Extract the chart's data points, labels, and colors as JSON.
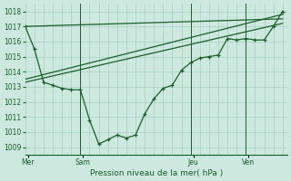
{
  "bg_color": "#cce8df",
  "grid_color": "#9ec8ba",
  "line_color": "#1a5e2a",
  "title": "Pression niveau de la mer( hPa )",
  "ylim": [
    1008.5,
    1018.5
  ],
  "yticks": [
    1009,
    1010,
    1011,
    1012,
    1013,
    1014,
    1015,
    1016,
    1017,
    1018
  ],
  "xlim": [
    0,
    28.5
  ],
  "day_labels": [
    "Mer",
    "Sam",
    "Jeu",
    "Ven"
  ],
  "day_positions": [
    0.3,
    6.3,
    18.3,
    24.3
  ],
  "day_vlines": [
    6,
    18,
    24
  ],
  "series1_x": [
    0,
    1,
    2,
    3,
    4,
    5,
    6,
    7,
    8,
    9,
    10,
    11,
    12,
    13,
    14,
    15,
    16,
    17,
    18,
    19,
    20,
    21,
    22,
    23,
    24,
    25,
    26,
    27,
    28
  ],
  "series1_y": [
    1017.0,
    1015.5,
    1013.3,
    1013.1,
    1012.9,
    1012.8,
    1012.8,
    1010.8,
    1009.2,
    1009.5,
    1009.8,
    1009.6,
    1009.8,
    1011.2,
    1012.2,
    1012.9,
    1013.1,
    1014.1,
    1014.6,
    1014.9,
    1015.0,
    1015.1,
    1016.2,
    1016.1,
    1016.2,
    1016.1,
    1016.1,
    1017.0,
    1018.0
  ],
  "series2_x": [
    0,
    28
  ],
  "series2_y": [
    1017.0,
    1017.5
  ],
  "series3_x": [
    0,
    28
  ],
  "series3_y": [
    1013.5,
    1017.8
  ],
  "series4_x": [
    0,
    28
  ],
  "series4_y": [
    1013.3,
    1017.2
  ]
}
